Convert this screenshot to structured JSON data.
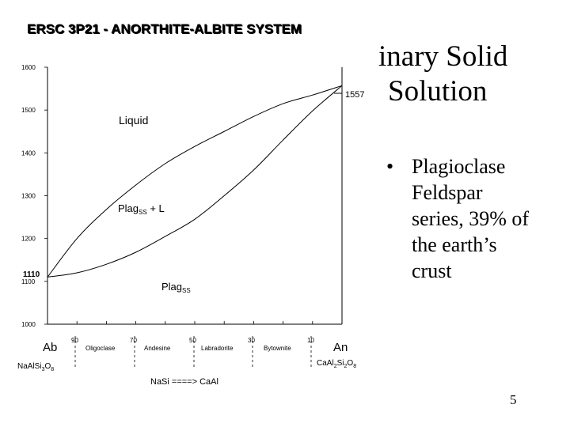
{
  "slide": {
    "title_lines": [
      "inary Solid",
      "Solution"
    ],
    "bullet": [
      "Plagioclase",
      "Feldspar",
      "series, 39% of",
      "the earth’s",
      "crust"
    ],
    "page_number": "5"
  },
  "figure": {
    "banner": "ERSC 3P21 - ANORTHITE-ALBITE SYSTEM",
    "y_ticks": [
      "1600",
      "1500",
      "1400",
      "1300",
      "1200",
      "1100",
      "1000"
    ],
    "annotations": {
      "top_temp": "1557",
      "bottom_temp": "1110",
      "liquid": "Liquid",
      "plag_l_main": "Plag",
      "plag_l_sub": "SS",
      "plag_l_tail": " + L",
      "plag_ss_main": "Plag",
      "plag_ss_sub": "SS"
    },
    "x_tick_numbers": [
      "90",
      "70",
      "50",
      "30",
      "10"
    ],
    "mineral_names": [
      "Oligoclase",
      "Andesine",
      "Labradorite",
      "Bytownite"
    ],
    "endmember_left": {
      "name": "Ab",
      "formula_parts": [
        "NaAlSi",
        "3",
        "O",
        "8"
      ]
    },
    "endmember_right": {
      "name": "An",
      "formula_parts": [
        "CaAl",
        "2",
        "Si",
        "2",
        "O",
        "8"
      ]
    },
    "substitution": "NaSi ====> CaAl"
  },
  "chart_data": {
    "type": "line",
    "title": "ERSC 3P21 - ANORTHITE-ALBITE SYSTEM",
    "x_label": "",
    "y_label": "",
    "ylim": [
      1000,
      1600
    ],
    "yticks": [
      1000,
      1100,
      1200,
      1300,
      1400,
      1500,
      1600
    ],
    "x_scale_note_from_ticks": [
      "90",
      "70",
      "50",
      "30",
      "10"
    ],
    "series": [
      {
        "points": [
          [
            0,
            1110
          ],
          [
            10,
            1200
          ],
          [
            20,
            1268
          ],
          [
            30,
            1325
          ],
          [
            40,
            1375
          ],
          [
            50,
            1415
          ],
          [
            60,
            1450
          ],
          [
            70,
            1485
          ],
          [
            80,
            1515
          ],
          [
            90,
            1535
          ],
          [
            100,
            1557
          ]
        ]
      },
      {
        "points": [
          [
            0,
            1110
          ],
          [
            10,
            1120
          ],
          [
            20,
            1140
          ],
          [
            30,
            1168
          ],
          [
            40,
            1205
          ],
          [
            50,
            1245
          ],
          [
            60,
            1300
          ],
          [
            70,
            1360
          ],
          [
            80,
            1430
          ],
          [
            90,
            1498
          ],
          [
            100,
            1557
          ]
        ]
      }
    ]
  }
}
